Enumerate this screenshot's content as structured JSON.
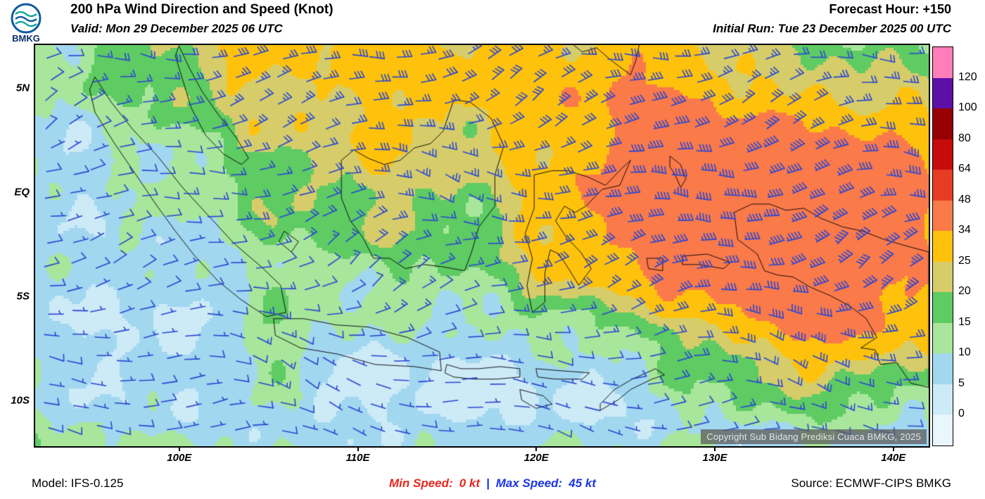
{
  "header": {
    "logo_text": "BMKG",
    "title": "200 hPa Wind Direction and Speed (Knot)",
    "forecast_hour": "Forecast Hour: +150",
    "valid": "Valid: Mon 29 December 2025 06 UTC",
    "initial_run": "Initial Run: Tue 23 December 2025 00 UTC"
  },
  "map": {
    "copyright": "Copyright Sub Bidang Prediksi Cuaca BMKG, 2025",
    "lat_ticks": [
      {
        "label": "5N",
        "value": 5
      },
      {
        "label": "EQ",
        "value": 0
      },
      {
        "label": "5S",
        "value": -5
      },
      {
        "label": "10S",
        "value": -10
      }
    ],
    "lon_ticks": [
      {
        "label": "100E",
        "value": 100
      },
      {
        "label": "110E",
        "value": 110
      },
      {
        "label": "120E",
        "value": 120
      },
      {
        "label": "130E",
        "value": 130
      },
      {
        "label": "140E",
        "value": 140
      }
    ]
  },
  "colorbar": {
    "tick_labels": [
      "120",
      "100",
      "80",
      "64",
      "48",
      "34",
      "25",
      "20",
      "15",
      "10",
      "5",
      "0"
    ],
    "band_colors_top_to_bottom": [
      "#ff7db8",
      "#5c10a8",
      "#960000",
      "#c60b0b",
      "#e63c23",
      "#fa7a4a",
      "#fec20c",
      "#d6cd6a",
      "#5ecb63",
      "#a8e69b",
      "#a2d7f0",
      "#cdeaf7",
      "#e9f6fc"
    ]
  },
  "wind": {
    "barb_color": "#2946d2",
    "speed_thresholds": [
      0,
      5,
      10,
      15,
      20,
      25,
      34,
      48,
      64,
      80,
      100,
      120
    ]
  },
  "footer": {
    "model": "Model: IFS-0.125",
    "min_speed_label": "Min Speed:",
    "min_speed_value": "0 kt",
    "separator": "|",
    "max_speed_label": "Max Speed:",
    "max_speed_value": "45 kt",
    "source": "Source: ECMWF-CIPS BMKG",
    "min_color": "#e8281e",
    "max_color": "#1a35e6"
  },
  "chart_data": {
    "type": "heatmap",
    "title": "200 hPa Wind Direction and Speed (Knot)",
    "units": "knot",
    "x_axis": {
      "label": "Longitude",
      "ticks": [
        "100E",
        "110E",
        "120E",
        "130E",
        "140E"
      ],
      "range": [
        "92E",
        "142E"
      ]
    },
    "y_axis": {
      "label": "Latitude",
      "ticks": [
        "5N",
        "EQ",
        "5S",
        "10S"
      ],
      "range": [
        "7N",
        "12S"
      ]
    },
    "legend": {
      "position": "right",
      "ticks": [
        120,
        100,
        80,
        64,
        48,
        34,
        25,
        20,
        15,
        10,
        5,
        0
      ],
      "colors_top_to_bottom": [
        "#ff7db8",
        "#5c10a8",
        "#960000",
        "#c60b0b",
        "#e63c23",
        "#fa7a4a",
        "#fec20c",
        "#d6cd6a",
        "#5ecb63",
        "#a8e69b",
        "#a2d7f0",
        "#cdeaf7",
        "#e9f6fc"
      ]
    },
    "min_speed_kt": 0,
    "max_speed_kt": 45,
    "regions": [
      {
        "speed_band": "34-48 kt",
        "color": "orange-red",
        "area": "eastern maximum over Papua and Maluku, ~126E-142E, 3N-7S"
      },
      {
        "speed_band": "25-34 kt",
        "color": "gold",
        "area": "northern band 104E-128E above 3N and broad area surrounding the eastern maximum 120E-142E"
      },
      {
        "speed_band": "10-20 kt",
        "color": "green",
        "area": "central and western Indonesia, Sumatra to Sulawesi"
      },
      {
        "speed_band": "0-10 kt",
        "color": "light blue",
        "area": "southeast Indian Ocean 92E-106E 3S-12S, south-central seas 108E-126E 7S-12S, far southeast corner"
      }
    ],
    "wind_direction_summary": "Blue wind barbs, predominantly easterly to east-northeasterly flow across the domain"
  }
}
